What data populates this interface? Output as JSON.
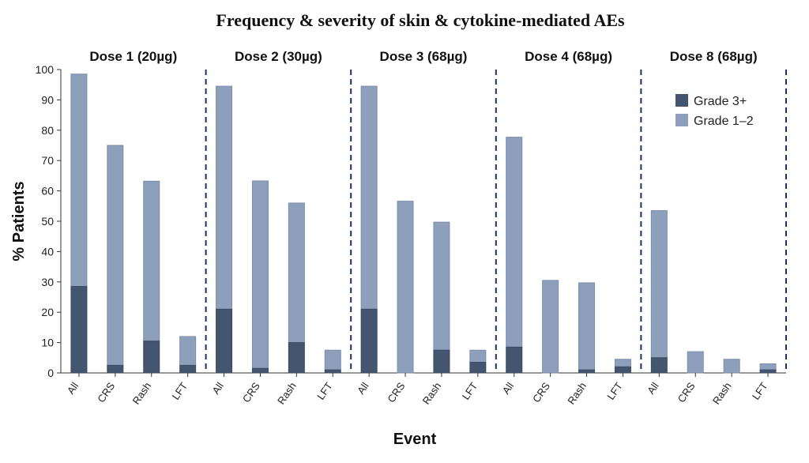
{
  "chart_data": {
    "type": "bar",
    "stacked": true,
    "title": "Frequency & severity of skin & cytokine-mediated AEs",
    "xlabel": "Event",
    "ylabel": "% Patients",
    "ylim": [
      0,
      100
    ],
    "yticks": [
      0,
      10,
      20,
      30,
      40,
      50,
      60,
      70,
      80,
      90,
      100
    ],
    "grid": false,
    "legend_position": "top-right",
    "colors": {
      "grade3": "#44556f",
      "grade12": "#8d9fba",
      "divider": "#1f2f66"
    },
    "groups": [
      {
        "label": "Dose 1 (20µg)",
        "categories": [
          "All",
          "CRS",
          "Rash",
          "LFT"
        ],
        "grade3": [
          28.5,
          2.5,
          10.5,
          2.5
        ],
        "grade12": [
          70.0,
          72.5,
          52.7,
          9.5
        ]
      },
      {
        "label": "Dose 2 (30µg)",
        "categories": [
          "All",
          "CRS",
          "Rash",
          "LFT"
        ],
        "grade3": [
          21.0,
          1.5,
          10.0,
          1.0
        ],
        "grade12": [
          73.5,
          61.8,
          46.0,
          6.5
        ]
      },
      {
        "label": "Dose 3 (68µg)",
        "categories": [
          "All",
          "CRS",
          "Rash",
          "LFT"
        ],
        "grade3": [
          21.0,
          0,
          7.5,
          3.5
        ],
        "grade12": [
          73.5,
          56.6,
          42.2,
          4.0
        ]
      },
      {
        "label": "Dose 4 (68µg)",
        "categories": [
          "All",
          "CRS",
          "Rash",
          "LFT"
        ],
        "grade3": [
          8.5,
          0,
          1.0,
          2.0
        ],
        "grade12": [
          69.2,
          30.5,
          28.7,
          2.5
        ]
      },
      {
        "label": "Dose 8 (68µg)",
        "categories": [
          "All",
          "CRS",
          "Rash",
          "LFT"
        ],
        "grade3": [
          5.0,
          0,
          0,
          1.0
        ],
        "grade12": [
          48.5,
          7.0,
          4.5,
          2.0
        ]
      }
    ],
    "series": [
      {
        "name": "Grade 3+",
        "key": "grade3"
      },
      {
        "name": "Grade 1–2",
        "key": "grade12"
      }
    ]
  }
}
